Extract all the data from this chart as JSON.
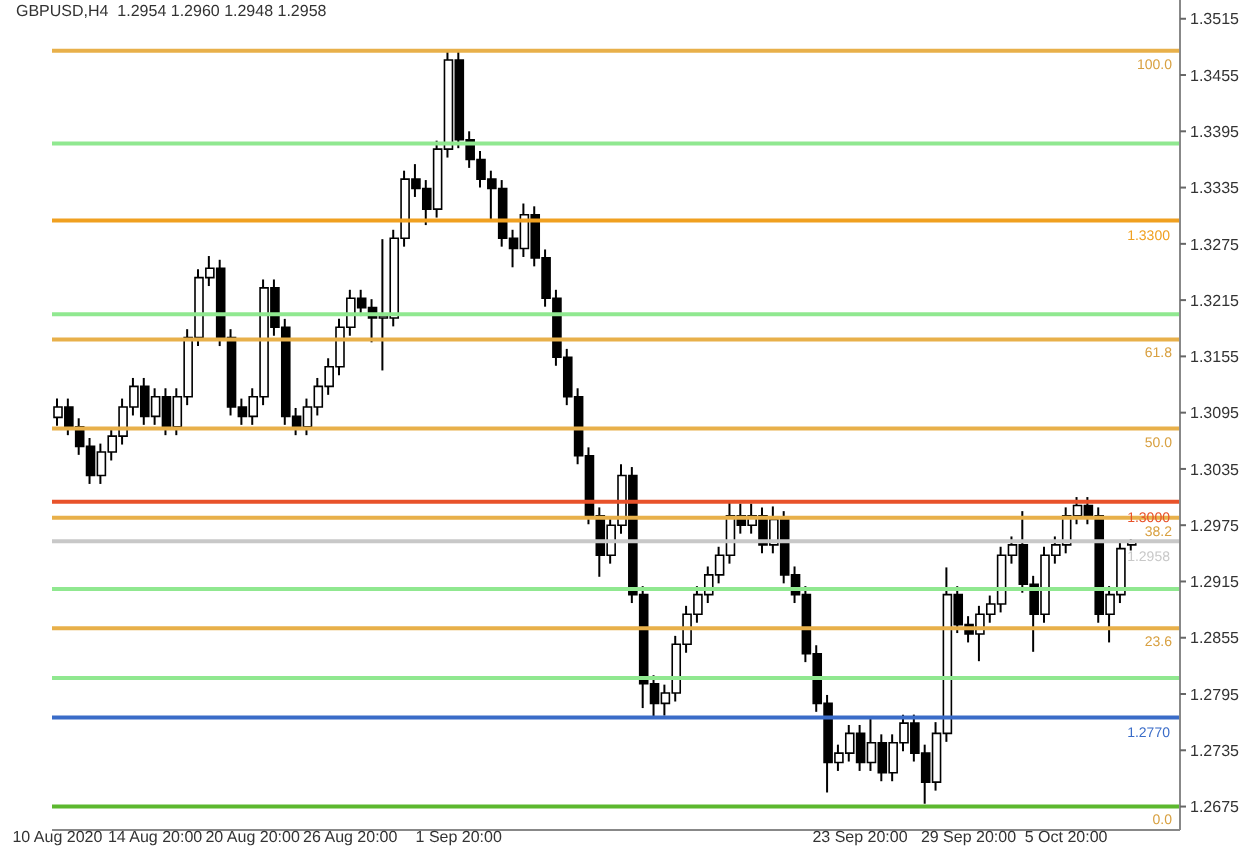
{
  "chart_data": {
    "type": "candlestick",
    "title": "GBPUSD,H4  1.2954 1.2960 1.2948 1.2958",
    "categories": [
      "10 Aug 2020",
      null,
      null,
      null,
      null,
      null,
      null,
      null,
      null,
      "14 Aug 20:00",
      null,
      null,
      null,
      null,
      null,
      null,
      null,
      null,
      "20 Aug 20:00",
      null,
      null,
      null,
      null,
      null,
      null,
      null,
      null,
      "26 Aug 20:00",
      null,
      null,
      null,
      null,
      null,
      null,
      null,
      null,
      null,
      "1 Sep 20:00",
      null,
      null,
      null,
      null,
      null,
      null,
      null,
      null,
      null,
      null,
      null,
      null,
      null,
      null,
      null,
      null,
      null,
      null,
      null,
      null,
      null,
      null,
      null,
      null,
      null,
      null,
      null,
      null,
      null,
      null,
      null,
      null,
      null,
      null,
      null,
      null,
      "23 Sep 20:00",
      null,
      null,
      null,
      null,
      null,
      null,
      null,
      null,
      null,
      "29 Sep 20:00",
      null,
      null,
      null,
      null,
      null,
      null,
      null,
      null,
      "5 Oct 20:00",
      null,
      null,
      null,
      null,
      null,
      null,
      null,
      null,
      null,
      null
    ],
    "color": "#000000",
    "ohlc": [
      [
        1.309,
        1.311,
        1.3081,
        1.3101
      ],
      [
        1.3101,
        1.311,
        1.3071,
        1.308
      ],
      [
        1.308,
        1.3089,
        1.305,
        1.3059
      ],
      [
        1.3059,
        1.3068,
        1.3019,
        1.3028
      ],
      [
        1.3028,
        1.3062,
        1.3019,
        1.3053
      ],
      [
        1.3053,
        1.3079,
        1.3044,
        1.307
      ],
      [
        1.307,
        1.311,
        1.3061,
        1.3101
      ],
      [
        1.3101,
        1.3132,
        1.3092,
        1.3123
      ],
      [
        1.3123,
        1.3132,
        1.3082,
        1.3091
      ],
      [
        1.3091,
        1.3121,
        1.3082,
        1.3112
      ],
      [
        1.3112,
        1.3121,
        1.3071,
        1.308
      ],
      [
        1.308,
        1.3121,
        1.3071,
        1.3112
      ],
      [
        1.3112,
        1.3184,
        1.3103,
        1.3175
      ],
      [
        1.3175,
        1.3248,
        1.3166,
        1.3239
      ],
      [
        1.3239,
        1.3262,
        1.323,
        1.3249
      ],
      [
        1.3249,
        1.3258,
        1.3166,
        1.3175
      ],
      [
        1.3175,
        1.3184,
        1.3092,
        1.3101
      ],
      [
        1.3101,
        1.311,
        1.3082,
        1.3091
      ],
      [
        1.3091,
        1.3121,
        1.3082,
        1.3112
      ],
      [
        1.3112,
        1.3237,
        1.3103,
        1.3228
      ],
      [
        1.3228,
        1.3237,
        1.3177,
        1.3186
      ],
      [
        1.3186,
        1.3195,
        1.3082,
        1.3091
      ],
      [
        1.3091,
        1.31,
        1.3071,
        1.308
      ],
      [
        1.308,
        1.311,
        1.3071,
        1.3101
      ],
      [
        1.3101,
        1.3132,
        1.3092,
        1.3123
      ],
      [
        1.3123,
        1.3153,
        1.3114,
        1.3144
      ],
      [
        1.3144,
        1.3195,
        1.3135,
        1.3186
      ],
      [
        1.3186,
        1.3226,
        1.3177,
        1.3217
      ],
      [
        1.3217,
        1.3226,
        1.3198,
        1.3207
      ],
      [
        1.3207,
        1.3216,
        1.317,
        1.3196
      ],
      [
        1.3196,
        1.328,
        1.314,
        1.3196
      ],
      [
        1.3196,
        1.329,
        1.3187,
        1.3281
      ],
      [
        1.3281,
        1.3353,
        1.3272,
        1.3344
      ],
      [
        1.3344,
        1.336,
        1.3325,
        1.3334
      ],
      [
        1.3334,
        1.3343,
        1.3295,
        1.3312
      ],
      [
        1.3312,
        1.3385,
        1.3303,
        1.3376
      ],
      [
        1.3376,
        1.3481,
        1.3367,
        1.3471
      ],
      [
        1.3471,
        1.348,
        1.3377,
        1.3386
      ],
      [
        1.3386,
        1.3395,
        1.3356,
        1.3365
      ],
      [
        1.3365,
        1.3374,
        1.3335,
        1.3344
      ],
      [
        1.3344,
        1.3353,
        1.33,
        1.3334
      ],
      [
        1.3334,
        1.3343,
        1.3272,
        1.3281
      ],
      [
        1.3281,
        1.329,
        1.325,
        1.327
      ],
      [
        1.327,
        1.3318,
        1.3261,
        1.3306
      ],
      [
        1.3306,
        1.3315,
        1.3251,
        1.326
      ],
      [
        1.326,
        1.3269,
        1.3208,
        1.3217
      ],
      [
        1.3217,
        1.3226,
        1.3145,
        1.3154
      ],
      [
        1.3154,
        1.3163,
        1.3103,
        1.3112
      ],
      [
        1.3112,
        1.3121,
        1.304,
        1.3049
      ],
      [
        1.3049,
        1.3058,
        1.2976,
        1.2985
      ],
      [
        1.2985,
        1.2994,
        1.292,
        1.2943
      ],
      [
        1.2943,
        1.2984,
        1.2934,
        1.2975
      ],
      [
        1.2975,
        1.304,
        1.2966,
        1.3028
      ],
      [
        1.3028,
        1.3037,
        1.2892,
        1.2901
      ],
      [
        1.2901,
        1.291,
        1.278,
        1.2806
      ],
      [
        1.2806,
        1.2815,
        1.277,
        1.2785
      ],
      [
        1.2785,
        1.2805,
        1.2772,
        1.2796
      ],
      [
        1.2796,
        1.2857,
        1.2787,
        1.2848
      ],
      [
        1.2848,
        1.2889,
        1.2839,
        1.288
      ],
      [
        1.288,
        1.291,
        1.2871,
        1.2901
      ],
      [
        1.2901,
        1.2931,
        1.2892,
        1.2922
      ],
      [
        1.2922,
        1.2952,
        1.2913,
        1.2943
      ],
      [
        1.2943,
        1.3,
        1.2934,
        1.2985
      ],
      [
        1.2985,
        1.2998,
        1.2966,
        1.2975
      ],
      [
        1.2975,
        1.2998,
        1.2966,
        1.2985
      ],
      [
        1.2985,
        1.2994,
        1.2945,
        1.2954
      ],
      [
        1.2954,
        1.2995,
        1.2945,
        1.2981
      ],
      [
        1.2981,
        1.299,
        1.2913,
        1.2922
      ],
      [
        1.2922,
        1.2931,
        1.2892,
        1.2901
      ],
      [
        1.2901,
        1.291,
        1.2829,
        1.2838
      ],
      [
        1.2838,
        1.2847,
        1.2776,
        1.2785
      ],
      [
        1.2785,
        1.2794,
        1.269,
        1.2722
      ],
      [
        1.2722,
        1.2741,
        1.2713,
        1.2732
      ],
      [
        1.2732,
        1.2762,
        1.2723,
        1.2753
      ],
      [
        1.2753,
        1.2762,
        1.2713,
        1.2722
      ],
      [
        1.2722,
        1.277,
        1.2713,
        1.2743
      ],
      [
        1.2743,
        1.2752,
        1.2702,
        1.2711
      ],
      [
        1.2711,
        1.2752,
        1.2702,
        1.2743
      ],
      [
        1.2743,
        1.2773,
        1.2734,
        1.2764
      ],
      [
        1.2764,
        1.2773,
        1.2723,
        1.2732
      ],
      [
        1.2732,
        1.2741,
        1.2678,
        1.2701
      ],
      [
        1.2701,
        1.2765,
        1.2692,
        1.2753
      ],
      [
        1.2753,
        1.293,
        1.2744,
        1.2901
      ],
      [
        1.2901,
        1.291,
        1.286,
        1.2869
      ],
      [
        1.2869,
        1.2878,
        1.285,
        1.2859
      ],
      [
        1.2859,
        1.2889,
        1.283,
        1.288
      ],
      [
        1.288,
        1.29,
        1.2871,
        1.2891
      ],
      [
        1.2891,
        1.2952,
        1.2882,
        1.2943
      ],
      [
        1.2943,
        1.2963,
        1.2934,
        1.2954
      ],
      [
        1.2954,
        1.299,
        1.2903,
        1.2912
      ],
      [
        1.2912,
        1.2921,
        1.284,
        1.288
      ],
      [
        1.288,
        1.2952,
        1.2871,
        1.2943
      ],
      [
        1.2943,
        1.2963,
        1.2934,
        1.2954
      ],
      [
        1.2954,
        1.2994,
        1.2945,
        1.2985
      ],
      [
        1.2985,
        1.3005,
        1.2976,
        1.2996
      ],
      [
        1.2996,
        1.3005,
        1.2976,
        1.2985
      ],
      [
        1.2985,
        1.2994,
        1.2871,
        1.288
      ],
      [
        1.288,
        1.291,
        1.285,
        1.2901
      ],
      [
        1.2901,
        1.2959,
        1.2892,
        1.295
      ],
      [
        1.2954,
        1.296,
        1.2948,
        1.2958
      ],
      null,
      null,
      null,
      null
    ],
    "ylim": [
      1.265,
      1.3535
    ],
    "yticks": [
      1.3515,
      1.3455,
      1.3395,
      1.3335,
      1.3275,
      1.3215,
      1.3155,
      1.3095,
      1.3035,
      1.2975,
      1.2915,
      1.2855,
      1.2795,
      1.2735,
      1.2675
    ],
    "ref_lines": [
      {
        "axis": "y",
        "value": 1.3481,
        "label": null,
        "color": "#e8b04a"
      },
      {
        "axis": "y",
        "value": 1.3382,
        "label": null,
        "color": "#90e890"
      },
      {
        "axis": "y",
        "value": 1.33,
        "label": "1.3300",
        "color": "#f0a020"
      },
      {
        "axis": "y",
        "value": 1.32,
        "label": null,
        "color": "#90e890"
      },
      {
        "axis": "y",
        "value": 1.3173,
        "label": null,
        "color": "#e8b04a"
      },
      {
        "axis": "y",
        "value": 1.3078,
        "label": null,
        "color": "#e8b04a"
      },
      {
        "axis": "y",
        "value": 1.3,
        "label": "1.3000",
        "color": "#e8522a"
      },
      {
        "axis": "y",
        "value": 1.2983,
        "label": null,
        "color": "#e8b04a"
      },
      {
        "axis": "y",
        "value": 1.2958,
        "label": "1.2958",
        "color": "#c8c8c8"
      },
      {
        "axis": "y",
        "value": 1.2907,
        "label": null,
        "color": "#90e890"
      },
      {
        "axis": "y",
        "value": 1.2865,
        "label": null,
        "color": "#e8b04a"
      },
      {
        "axis": "y",
        "value": 1.2812,
        "label": null,
        "color": "#90e890"
      },
      {
        "axis": "y",
        "value": 1.277,
        "label": "1.2770",
        "color": "#3a6cc8"
      },
      {
        "axis": "y",
        "value": 1.2675,
        "label": null,
        "color": "#5cb82e"
      }
    ],
    "annotations": [
      {
        "text": "100.0",
        "y": 1.3481
      },
      {
        "text": "61.8",
        "y": 1.3173
      },
      {
        "text": "50.0",
        "y": 1.3078
      },
      {
        "text": "38.2",
        "y": 1.2983
      },
      {
        "text": "23.6",
        "y": 1.2865
      },
      {
        "text": "0.0",
        "y": 1.2675
      }
    ]
  }
}
